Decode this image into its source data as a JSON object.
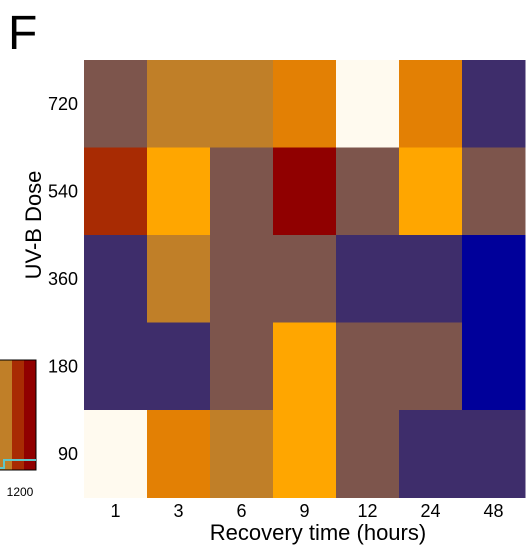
{
  "panel_label": "F",
  "chart_data": {
    "type": "heatmap",
    "title": "",
    "xlabel": "Recovery time (hours)",
    "ylabel": "UV-B Dose",
    "x_categories": [
      "1",
      "3",
      "6",
      "9",
      "12",
      "24",
      "48"
    ],
    "y_categories": [
      "720",
      "540",
      "360",
      "180",
      "90"
    ],
    "cells": [
      [
        "#7d554c",
        "#c07f28",
        "#c07f28",
        "#e38004",
        "#fffaef",
        "#e38004",
        "#3e2d6b"
      ],
      [
        "#a82b03",
        "#ffa600",
        "#7d554c",
        "#900000",
        "#7d554c",
        "#ffa600",
        "#7d554c"
      ],
      [
        "#3e2d6b",
        "#c07f28",
        "#7d554c",
        "#7d554c",
        "#3e2d6b",
        "#3e2d6b",
        "#00009a"
      ],
      [
        "#3e2d6b",
        "#3e2d6b",
        "#7d554c",
        "#ffa600",
        "#7d554c",
        "#7d554c",
        "#00009a"
      ],
      [
        "#fffaef",
        "#e38004",
        "#c07f28",
        "#ffa600",
        "#7d554c",
        "#3e2d6b",
        "#3e2d6b"
      ]
    ],
    "colorbar": {
      "colors": [
        "#c07f28",
        "#a82b03",
        "#900000"
      ],
      "tick_label": "1200",
      "line_color": "#5ec7c9"
    }
  }
}
